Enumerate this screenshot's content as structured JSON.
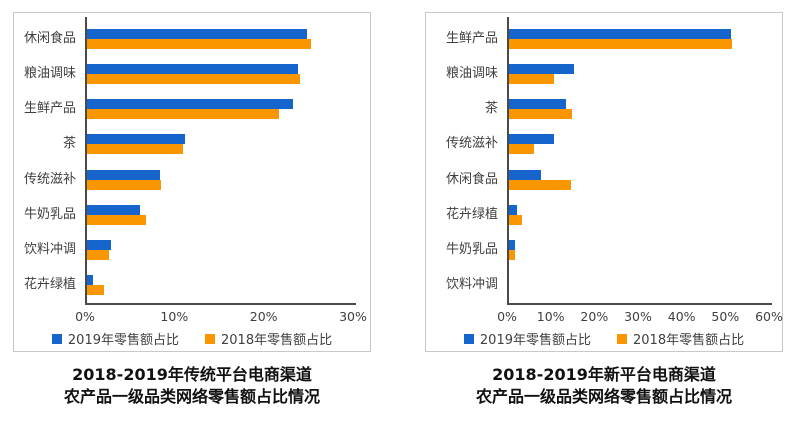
{
  "colors": {
    "bar_2019": "#1565cd",
    "bar_2018": "#fa9600",
    "axis": "#4a4a4a",
    "panel_border": "#c9c9c9",
    "label_text": "#404040",
    "title_text": "#111111"
  },
  "chart_data": [
    {
      "type": "bar",
      "orientation": "horizontal",
      "title": "2018-2019年传统平台电商渠道 农产品一级品类网络零售额占比情况",
      "title_lines": [
        "2018-2019年传统平台电商渠道",
        "农产品一级品类网络零售额占比情况"
      ],
      "categories": [
        "休闲食品",
        "粮油调味",
        "生鲜产品",
        "茶",
        "传统滋补",
        "牛奶乳品",
        "饮料冲调",
        "花卉绿植"
      ],
      "series": [
        {
          "name": "2019年零售额占比",
          "color": "#1565cd",
          "values": [
            24.6,
            23.6,
            23.1,
            11.0,
            8.2,
            5.9,
            2.7,
            0.7
          ]
        },
        {
          "name": "2018年零售额占比",
          "color": "#fa9600",
          "values": [
            25.1,
            23.8,
            21.5,
            10.8,
            8.3,
            6.6,
            2.5,
            1.9
          ]
        }
      ],
      "xlabel": "",
      "ylabel": "",
      "xlim": [
        0,
        30
      ],
      "xticks": [
        "0%",
        "10%",
        "20%",
        "30%"
      ],
      "grid": false,
      "legend_position": "bottom"
    },
    {
      "type": "bar",
      "orientation": "horizontal",
      "title": "2018-2019年新平台电商渠道 农产品一级品类网络零售额占比情况",
      "title_lines": [
        "2018-2019年新平台电商渠道",
        "农产品一级品类网络零售额占比情况"
      ],
      "categories": [
        "生鲜产品",
        "粮油调味",
        "茶",
        "传统滋补",
        "休闲食品",
        "花卉绿植",
        "牛奶乳品",
        "饮料冲调"
      ],
      "series": [
        {
          "name": "2019年零售额占比",
          "color": "#1565cd",
          "values": [
            50.8,
            14.9,
            13.0,
            10.3,
            7.3,
            1.8,
            1.4,
            0
          ]
        },
        {
          "name": "2018年零售额占比",
          "color": "#fa9600",
          "values": [
            51.0,
            10.3,
            14.4,
            5.7,
            14.2,
            3.0,
            1.3,
            0
          ]
        }
      ],
      "xlabel": "",
      "ylabel": "",
      "xlim": [
        0,
        60
      ],
      "xticks": [
        "0%",
        "10%",
        "20%",
        "30%",
        "40%",
        "50%",
        "60%"
      ],
      "grid": false,
      "legend_position": "bottom"
    }
  ]
}
